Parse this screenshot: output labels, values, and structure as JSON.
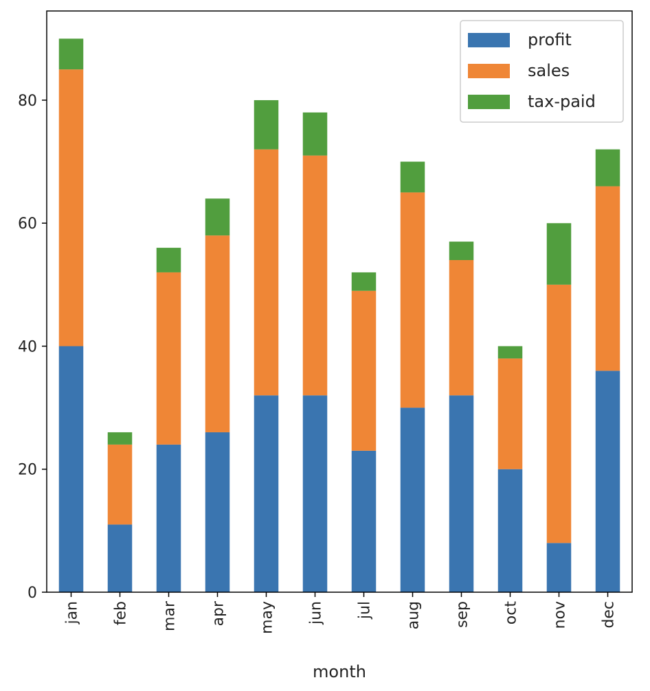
{
  "chart_data": {
    "type": "bar",
    "stacked": true,
    "title": "",
    "xlabel": "month",
    "ylabel": "",
    "ylim": [
      0,
      94.5
    ],
    "yticks": [
      0,
      20,
      40,
      60,
      80
    ],
    "grid": false,
    "legend_position": "top-right",
    "categories": [
      "jan",
      "feb",
      "mar",
      "apr",
      "may",
      "jun",
      "jul",
      "aug",
      "sep",
      "oct",
      "nov",
      "dec"
    ],
    "series": [
      {
        "name": "profit",
        "color": "#3a75b0",
        "values": [
          40,
          11,
          24,
          26,
          32,
          32,
          23,
          30,
          32,
          20,
          8,
          36
        ]
      },
      {
        "name": "sales",
        "color": "#ef8636",
        "values": [
          45,
          13,
          28,
          32,
          40,
          39,
          26,
          35,
          22,
          18,
          42,
          30
        ]
      },
      {
        "name": "tax-paid",
        "color": "#519e3e",
        "values": [
          5,
          2,
          4,
          6,
          8,
          7,
          3,
          5,
          3,
          2,
          10,
          6
        ]
      }
    ]
  }
}
